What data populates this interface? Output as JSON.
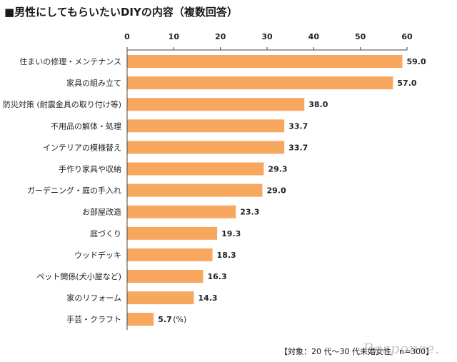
{
  "title": "■男性にしてもらいたいDIYの内容（複数回答）",
  "footnote": "【対象：20 代～30 代未婚女性　n=300】",
  "watermark": "Response.",
  "colors": {
    "bar": "#F7A75E",
    "axis": "#444444",
    "grid": "#cfcfcf"
  },
  "chart_data": {
    "type": "bar",
    "orientation": "horizontal",
    "title": "男性にしてもらいたいDIYの内容（複数回答）",
    "unit": "(%)",
    "xlim": [
      0,
      60
    ],
    "ticks": [
      0,
      10,
      20,
      30,
      40,
      50,
      60
    ],
    "tick_labels": [
      "0",
      "10",
      "20",
      "30",
      "40",
      "50",
      "60"
    ],
    "categories": [
      "住まいの修理・メンテナンス",
      "家具の組み立て",
      "防災対策 (耐震金具の取り付け等)",
      "不用品の解体・処理",
      "インテリアの模様替え",
      "手作り家具や収納",
      "ガーデニング・庭の手入れ",
      "お部屋改造",
      "庭づくり",
      "ウッドデッキ",
      "ペット関係(犬小屋など)",
      "家のリフォーム",
      "手芸・クラフト"
    ],
    "values": [
      59.0,
      57.0,
      38.0,
      33.7,
      33.7,
      29.3,
      29.0,
      23.3,
      19.3,
      18.3,
      16.3,
      14.3,
      5.7
    ],
    "value_labels": [
      "59.0",
      "57.0",
      "38.0",
      "33.7",
      "33.7",
      "29.3",
      "29.0",
      "23.3",
      "19.3",
      "18.3",
      "16.3",
      "14.3",
      "5.7"
    ]
  }
}
